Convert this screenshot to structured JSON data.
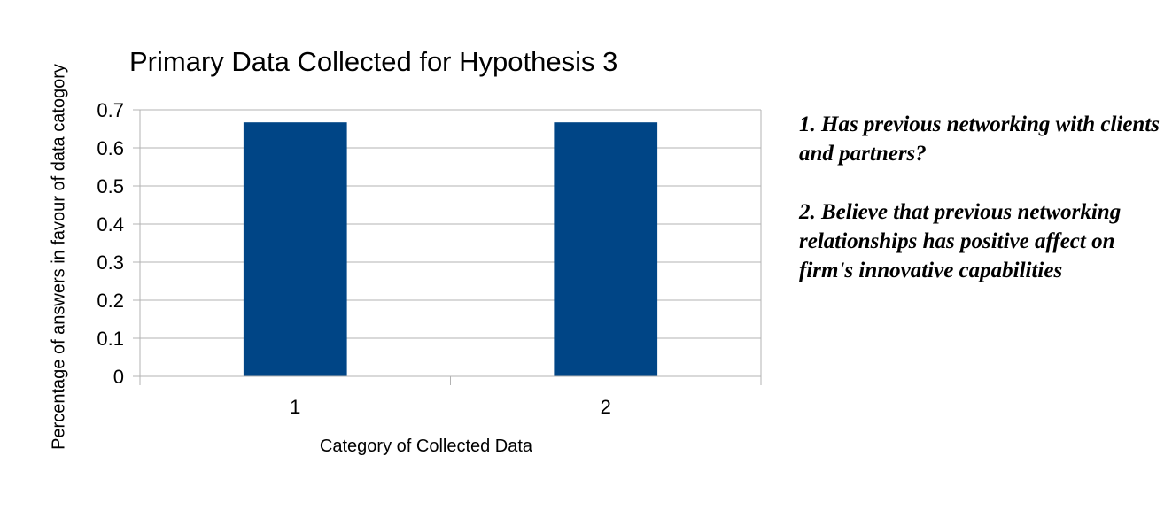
{
  "chart_data": {
    "type": "bar",
    "title": "Primary Data Collected for Hypothesis 3",
    "xlabel": "Category of Collected Data",
    "ylabel": "Percentage of answers in favour of data catogory",
    "categories": [
      "1",
      "2"
    ],
    "values": [
      0.667,
      0.667
    ],
    "ylim": [
      0,
      0.7
    ],
    "yticks": [
      "0",
      "0.1",
      "0.2",
      "0.3",
      "0.4",
      "0.5",
      "0.6",
      "0.7"
    ],
    "grid": true,
    "bar_color": "#004586",
    "annotations": [
      "1. Has previous networking with clients and partners?",
      "2. Believe that previous networking relationships has positive affect on firm's innovative capabilities"
    ]
  }
}
